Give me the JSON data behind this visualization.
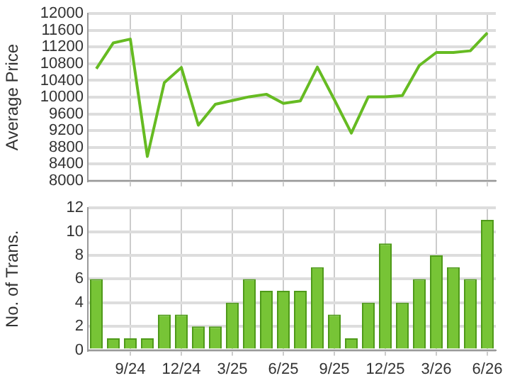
{
  "chart_data": [
    {
      "type": "line",
      "ylabel": "Average Price",
      "categories": [
        null,
        null,
        null,
        null,
        null,
        null,
        null,
        null,
        null,
        null,
        null,
        null,
        null,
        null,
        null,
        null,
        null,
        null,
        null,
        null,
        null,
        null,
        null,
        null
      ],
      "series": [
        {
          "color": "#66bb22",
          "values": [
            10680,
            11300,
            11390,
            8580,
            10350,
            10710,
            9330,
            9830,
            9920,
            10010,
            10070,
            9850,
            9910,
            10720,
            9940,
            9140,
            10010,
            10010,
            10040,
            10760,
            11070,
            11070,
            11110,
            11540
          ]
        }
      ],
      "ylim": [
        8000,
        12000
      ],
      "yticks": [
        8000,
        8400,
        8800,
        9200,
        9600,
        10000,
        10400,
        10800,
        11200,
        11600,
        12000
      ],
      "grid": true,
      "tick_labels": "y",
      "marker": "none",
      "line_style": "solid"
    },
    {
      "type": "bar",
      "ylabel": "No. of Trans.",
      "categories": [
        null,
        null,
        "9/24",
        null,
        null,
        "12/24",
        null,
        null,
        "3/25",
        null,
        null,
        "6/25",
        null,
        null,
        "9/25",
        null,
        null,
        "12/25",
        null,
        null,
        "3/26",
        null,
        null,
        "6/26"
      ],
      "series": [
        {
          "color": "#77c436",
          "values": [
            6,
            1,
            1,
            1,
            3,
            3,
            2,
            2,
            4,
            6,
            5,
            5,
            5,
            7,
            3,
            1,
            4,
            9,
            4,
            6,
            8,
            7,
            6,
            11
          ]
        }
      ],
      "ylim": [
        0,
        12
      ],
      "yticks": [
        0,
        2,
        4,
        6,
        8,
        10,
        12
      ],
      "grid": true
    }
  ]
}
